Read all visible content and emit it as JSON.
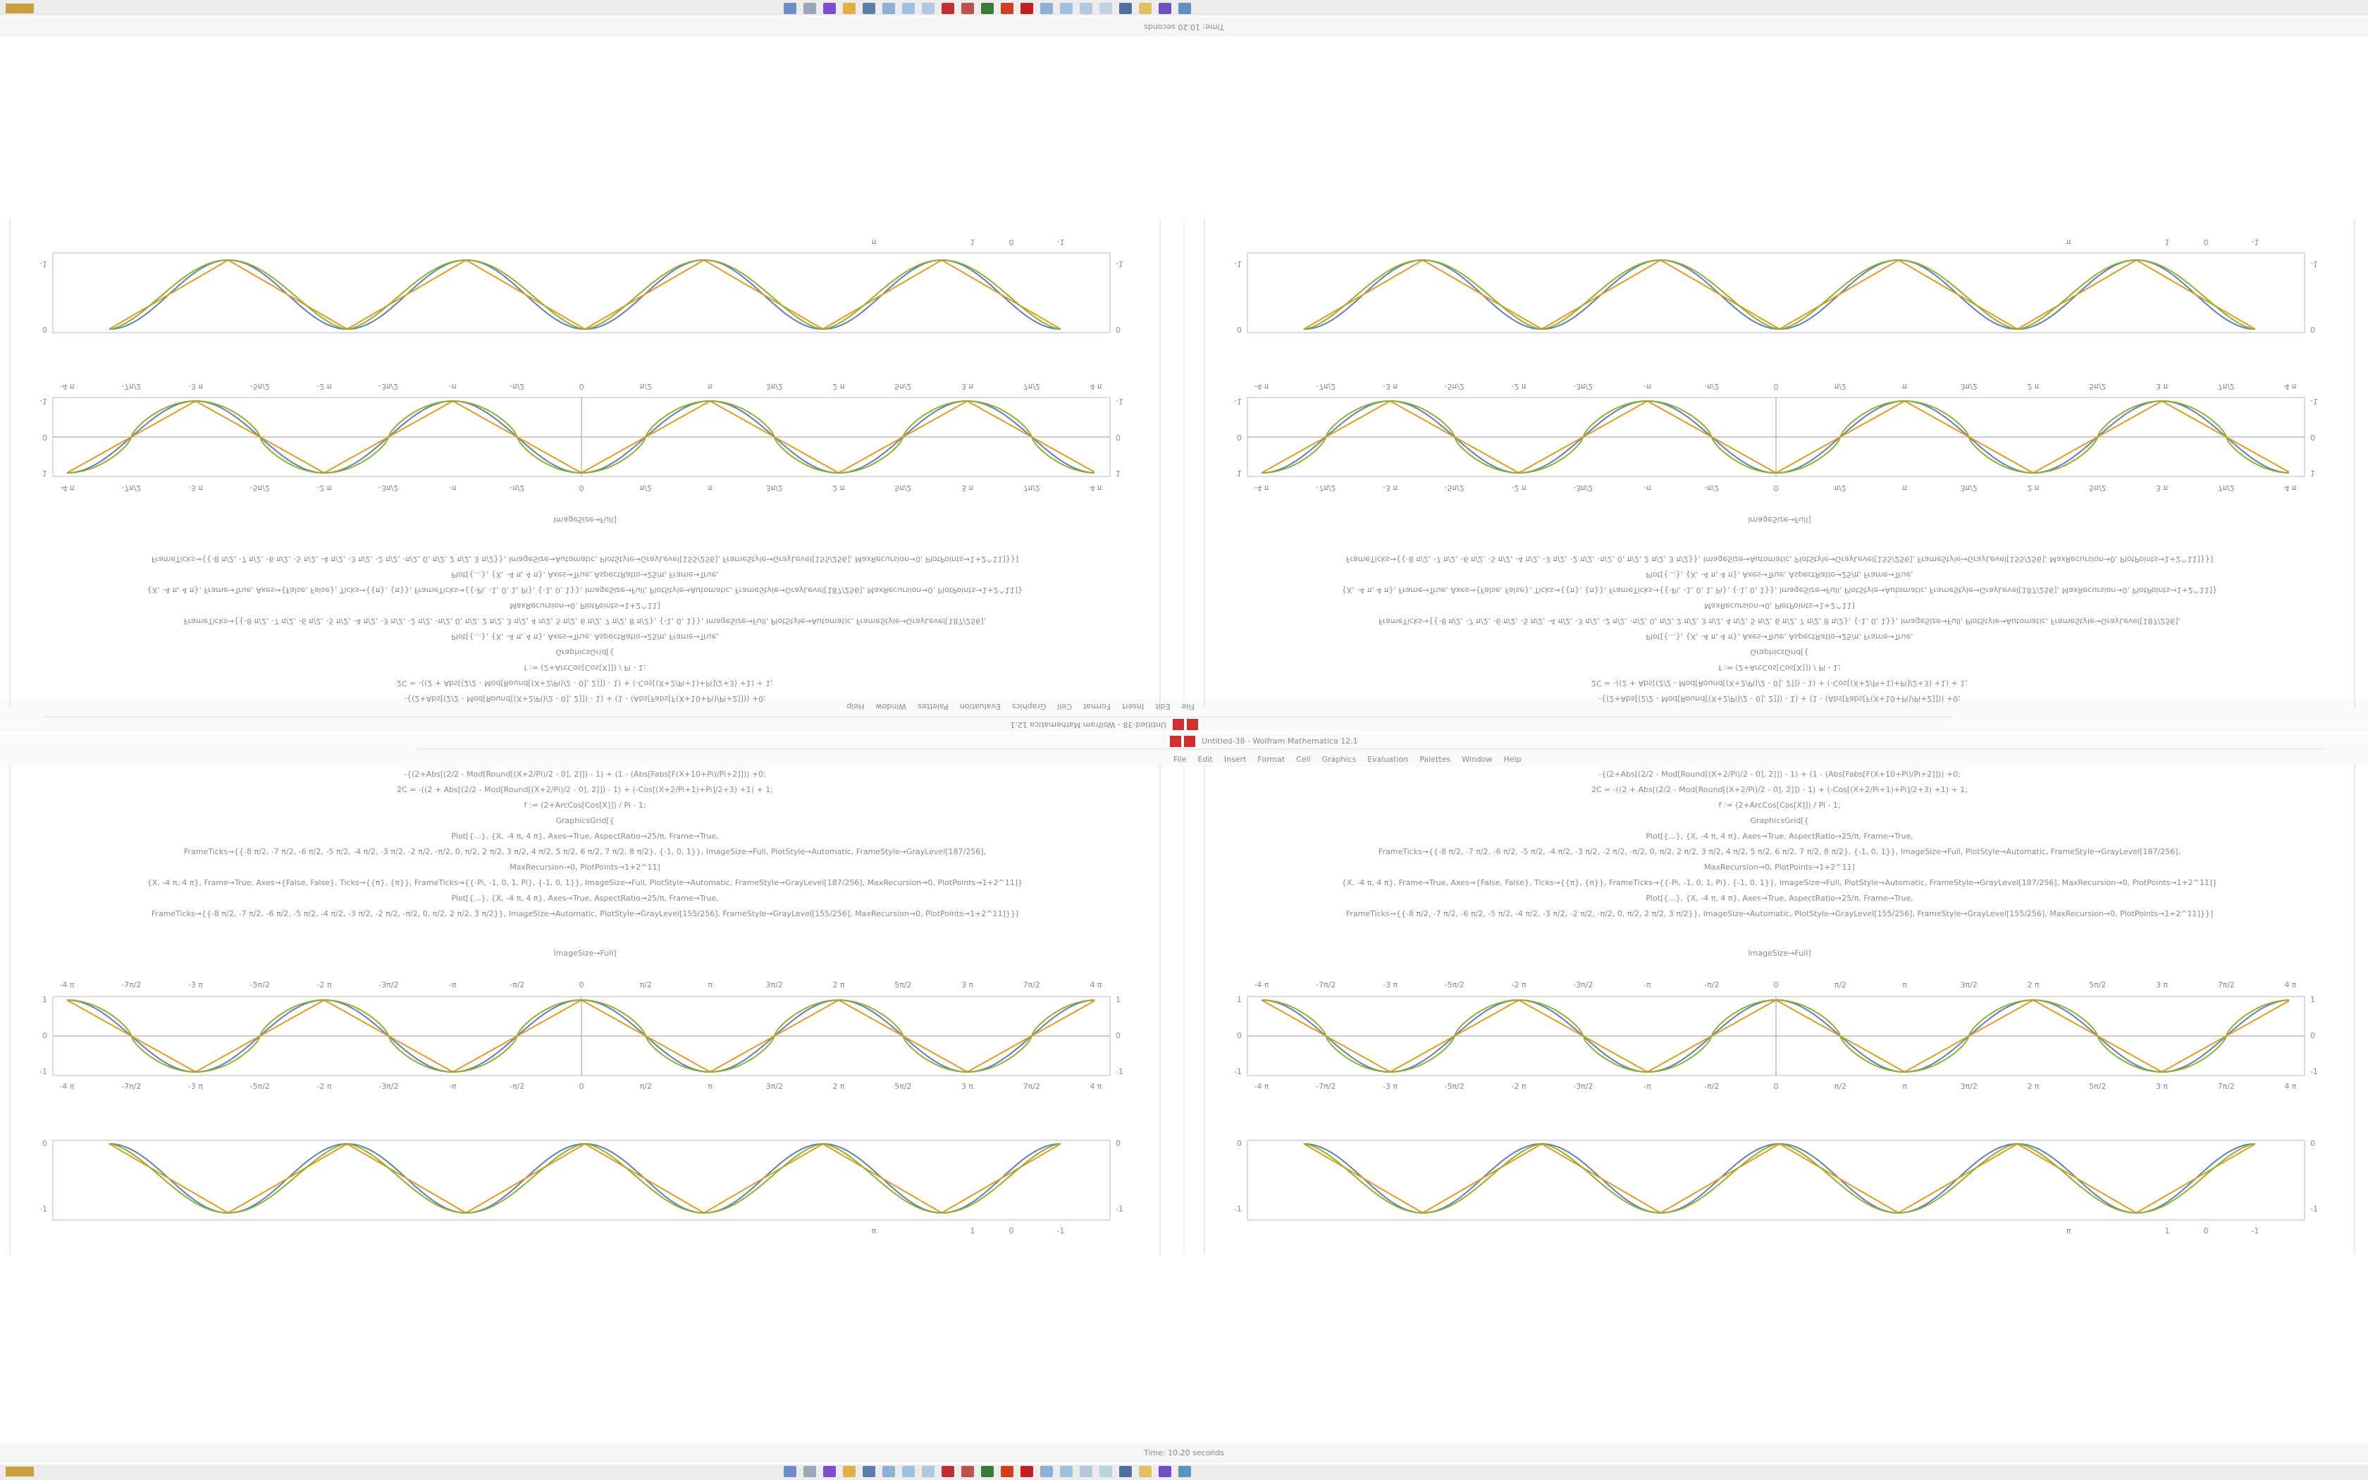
{
  "window": {
    "title": "Untitled-38 - Wolfram Mathematica 12.1",
    "status": "Time: 10.20 seconds"
  },
  "menu": [
    "File",
    "Edit",
    "Insert",
    "Format",
    "Cell",
    "Graphics",
    "Evaluation",
    "Palettes",
    "Window",
    "Help"
  ],
  "notebook": {
    "code": [
      "-{(2+Abs[(2/2 - Mod[Round[(X+2/Pi)/2 - 0], 2]]) - 1) + (1 - (Abs[Fabs[F(X+10+Pi)/Pi+2]])) +0;",
      "2C = -((2 + Abs[(2/2 - Mod[Round[(X+2/Pi)/2 - 0], 2]]) - 1) + (-Cos[(X+2/Pi+1)+Pi]/2+3) +1) + 1;",
      "f := (2+ArcCos[Cos[X]]) / Pi - 1;",
      "GraphicsGrid[{",
      "Plot[{...}, {X, -4 π, 4 π}, Axes→True, AspectRatio→25/π, Frame→True,",
      "FrameTicks→{{-8 π/2, -7 π/2, -6 π/2, -5 π/2, -4 π/2, -3 π/2, -2 π/2, -π/2, 0, π/2, 2 π/2, 3 π/2, 4 π/2, 5 π/2, 6 π/2, 7 π/2, 8 π/2}, {-1, 0, 1}}, ImageSize→Full, PlotStyle→Automatic, FrameStyle→GrayLevel[187/256],",
      "MaxRecursion→0, PlotPoints→1+2^11]",
      "{X, -4 π, 4 π}, Frame→True, Axes→{False, False}, Ticks→{{π}, {π}}, FrameTicks→{{-Pi, -1, 0, 1, Pi}, {-1, 0, 1}}, ImageSize→Full, PlotStyle→Automatic, FrameStyle→GrayLevel[187/256], MaxRecursion→0, PlotPoints→1+2^11]}",
      "Plot[{...}, {X, -4 π, 4 π}, Axes→True, AspectRatio→25/π, Frame→True,",
      "FrameTicks→{{-8 π/2, -7 π/2, -6 π/2, -5 π/2, -4 π/2, -3 π/2, -2 π/2, -π/2, 0, π/2, 2 π/2, 3 π/2}}, ImageSize→Automatic, PlotStyle→GrayLevel[155/256], FrameStyle→GrayLevel[155/256], MaxRecursion→0, PlotPoints→1+2^11]}}]"
    ],
    "output_label": "ImageSize→Full]"
  },
  "wave_plot": {
    "xticks": [
      "-4 π",
      "-7π/2",
      "-3 π",
      "-5π/2",
      "-2 π",
      "-3π/2",
      "-π",
      "-π/2",
      "0",
      "π/2",
      "π",
      "3π/2",
      "2 π",
      "5π/2",
      "3 π",
      "7π/2",
      "4 π"
    ],
    "yticks": [
      "-1",
      "0",
      "1"
    ]
  },
  "hump_plot": {
    "xticks": [
      "π",
      "1",
      "0",
      "-1"
    ],
    "yticks": [
      "0",
      "-1"
    ]
  }
}
